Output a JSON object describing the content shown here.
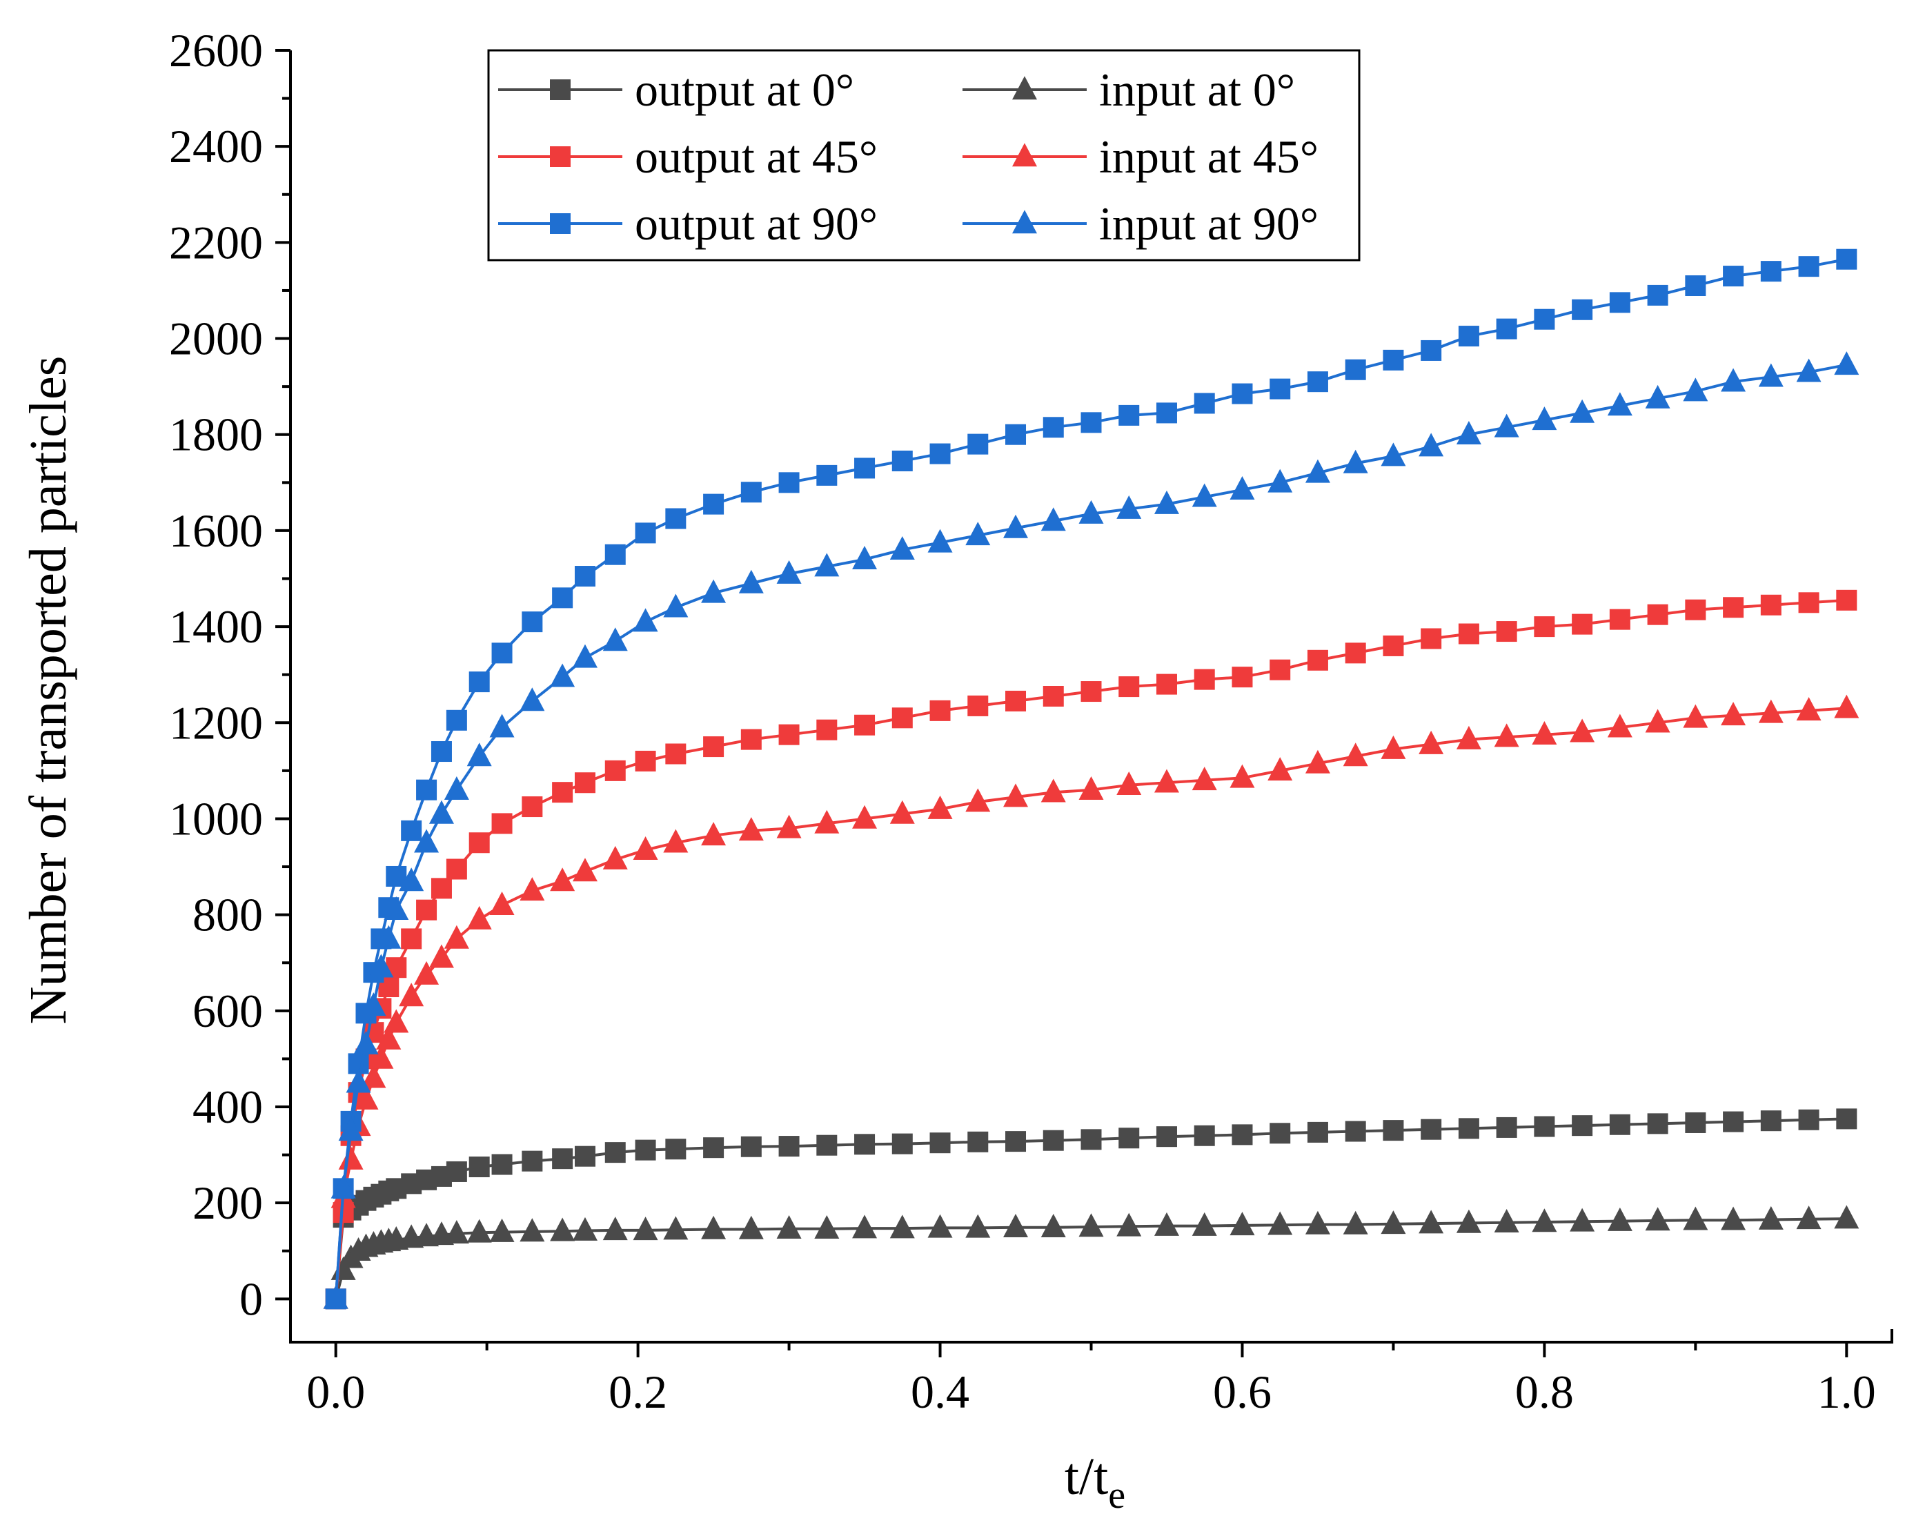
{
  "chart_data": {
    "type": "line",
    "title": "",
    "xlabel": "t/t",
    "xlabel_sub": "e",
    "ylabel": "Number of transported particles",
    "xlim": [
      -0.03,
      1.03
    ],
    "ylim": [
      -90,
      2600
    ],
    "xticks": [
      0.0,
      0.2,
      0.4,
      0.6,
      0.8,
      1.0
    ],
    "xtick_labels": [
      "0.0",
      "0.2",
      "0.4",
      "0.6",
      "0.8",
      "1.0"
    ],
    "yticks": [
      0,
      200,
      400,
      600,
      800,
      1000,
      1200,
      1400,
      1600,
      1800,
      2000,
      2200,
      2400,
      2600
    ],
    "ytick_labels": [
      "0",
      "200",
      "400",
      "600",
      "800",
      "1000",
      "1200",
      "1400",
      "1600",
      "1800",
      "2000",
      "2200",
      "2400",
      "2600"
    ],
    "legend_position": "top-center",
    "x": [
      0.0,
      0.005,
      0.01,
      0.015,
      0.02,
      0.025,
      0.03,
      0.035,
      0.04,
      0.05,
      0.06,
      0.07,
      0.08,
      0.095,
      0.11,
      0.13,
      0.15,
      0.165,
      0.185,
      0.205,
      0.225,
      0.25,
      0.275,
      0.3,
      0.325,
      0.35,
      0.375,
      0.4,
      0.425,
      0.45,
      0.475,
      0.5,
      0.525,
      0.55,
      0.575,
      0.6,
      0.625,
      0.65,
      0.675,
      0.7,
      0.725,
      0.75,
      0.775,
      0.8,
      0.825,
      0.85,
      0.875,
      0.9,
      0.925,
      0.95,
      0.975,
      1.0
    ],
    "series": [
      {
        "name": "output at 0°",
        "marker": "square",
        "color": "#4a4a4a",
        "values": [
          0,
          170,
          185,
          195,
          205,
          212,
          218,
          225,
          230,
          240,
          248,
          255,
          265,
          275,
          280,
          287,
          292,
          297,
          305,
          310,
          312,
          315,
          317,
          318,
          320,
          322,
          323,
          325,
          327,
          328,
          330,
          332,
          335,
          338,
          340,
          342,
          345,
          347,
          349,
          351,
          353,
          355,
          357,
          359,
          361,
          363,
          365,
          367,
          369,
          371,
          373,
          375
        ]
      },
      {
        "name": "input at 0°",
        "marker": "triangle",
        "color": "#4a4a4a",
        "values": [
          0,
          60,
          85,
          100,
          108,
          113,
          117,
          120,
          123,
          127,
          130,
          133,
          136,
          138,
          139,
          140,
          141,
          142,
          143,
          143,
          144,
          145,
          145,
          146,
          146,
          147,
          147,
          148,
          148,
          149,
          149,
          150,
          151,
          152,
          152,
          153,
          154,
          155,
          155,
          156,
          157,
          158,
          159,
          160,
          161,
          162,
          163,
          164,
          164,
          165,
          166,
          167
        ]
      },
      {
        "name": "output at 45°",
        "marker": "square",
        "color": "#ef3b3b",
        "values": [
          0,
          180,
          340,
          430,
          500,
          555,
          605,
          650,
          690,
          750,
          810,
          855,
          895,
          950,
          990,
          1025,
          1055,
          1075,
          1100,
          1120,
          1135,
          1150,
          1165,
          1175,
          1185,
          1195,
          1210,
          1225,
          1235,
          1245,
          1255,
          1265,
          1275,
          1280,
          1290,
          1295,
          1310,
          1330,
          1345,
          1360,
          1375,
          1385,
          1390,
          1400,
          1405,
          1415,
          1425,
          1435,
          1440,
          1445,
          1450,
          1455
        ]
      },
      {
        "name": "input at 45°",
        "marker": "triangle",
        "color": "#ef3b3b",
        "values": [
          0,
          210,
          290,
          360,
          415,
          460,
          500,
          540,
          575,
          630,
          675,
          710,
          750,
          790,
          820,
          850,
          870,
          890,
          915,
          935,
          950,
          965,
          975,
          980,
          990,
          1000,
          1010,
          1020,
          1035,
          1045,
          1055,
          1060,
          1070,
          1075,
          1080,
          1085,
          1100,
          1115,
          1130,
          1145,
          1155,
          1165,
          1170,
          1175,
          1180,
          1190,
          1200,
          1210,
          1215,
          1220,
          1225,
          1230
        ]
      },
      {
        "name": "output at 90°",
        "marker": "square",
        "color": "#1f6fd1",
        "values": [
          0,
          230,
          370,
          490,
          595,
          680,
          750,
          815,
          880,
          975,
          1060,
          1140,
          1205,
          1285,
          1345,
          1410,
          1460,
          1505,
          1550,
          1595,
          1625,
          1655,
          1680,
          1700,
          1715,
          1730,
          1745,
          1760,
          1780,
          1800,
          1815,
          1825,
          1840,
          1845,
          1865,
          1885,
          1895,
          1910,
          1935,
          1955,
          1975,
          2005,
          2020,
          2040,
          2060,
          2075,
          2090,
          2110,
          2130,
          2140,
          2150,
          2165
        ]
      },
      {
        "name": "input at 90°",
        "marker": "triangle",
        "color": "#1f6fd1",
        "values": [
          0,
          230,
          350,
          450,
          530,
          610,
          690,
          750,
          810,
          870,
          950,
          1010,
          1060,
          1130,
          1190,
          1245,
          1295,
          1335,
          1370,
          1410,
          1440,
          1470,
          1490,
          1510,
          1525,
          1540,
          1560,
          1575,
          1590,
          1605,
          1620,
          1635,
          1645,
          1655,
          1670,
          1685,
          1700,
          1720,
          1740,
          1755,
          1775,
          1800,
          1815,
          1830,
          1845,
          1860,
          1875,
          1890,
          1910,
          1920,
          1930,
          1945
        ]
      }
    ]
  }
}
